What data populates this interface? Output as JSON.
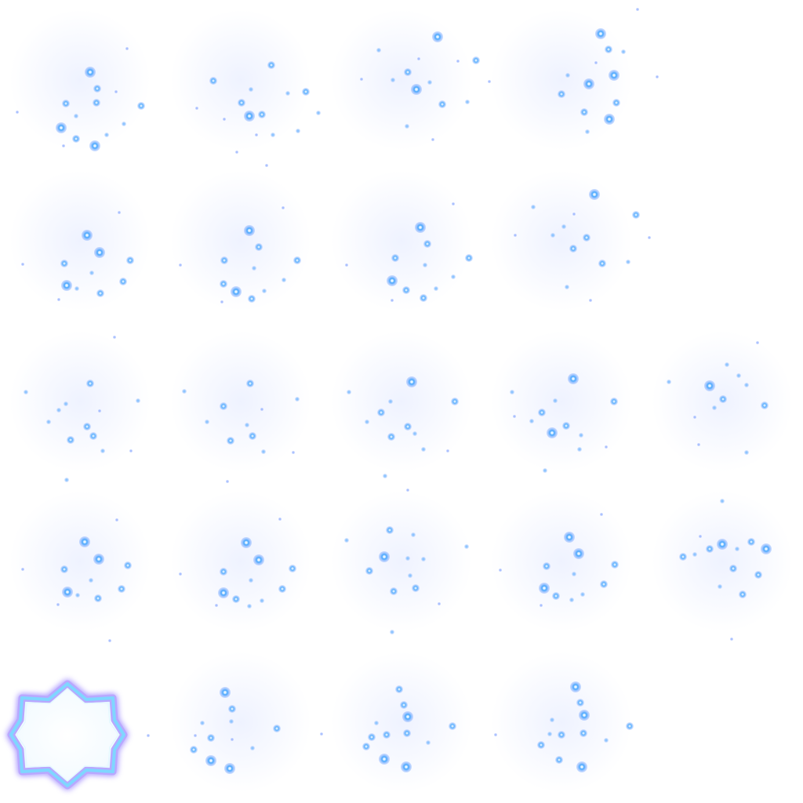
{
  "sheet": {
    "background": "#ffffff",
    "particle_color": "#4aa8ff",
    "particle_core_color": "#eaf6ff",
    "haze_color": "#e1e8ff",
    "star_stroke_color": "#7fd6ff",
    "star_glow_color": "#b8a8ff",
    "columns": 5,
    "rows": 5
  },
  "frames": [
    {
      "name": "sparkle-frame-1"
    },
    {
      "name": "sparkle-frame-2"
    },
    {
      "name": "sparkle-frame-3"
    },
    {
      "name": "sparkle-frame-4"
    },
    {
      "name": "sparkle-frame-5-empty",
      "empty": true
    },
    {
      "name": "sparkle-frame-6"
    },
    {
      "name": "sparkle-frame-7"
    },
    {
      "name": "sparkle-frame-8"
    },
    {
      "name": "sparkle-frame-9"
    },
    {
      "name": "sparkle-frame-10-empty",
      "empty": true
    },
    {
      "name": "sparkle-frame-11"
    },
    {
      "name": "sparkle-frame-12"
    },
    {
      "name": "sparkle-frame-13"
    },
    {
      "name": "sparkle-frame-14"
    },
    {
      "name": "sparkle-frame-15"
    },
    {
      "name": "sparkle-frame-16"
    },
    {
      "name": "sparkle-frame-17"
    },
    {
      "name": "sparkle-frame-18"
    },
    {
      "name": "sparkle-frame-19"
    },
    {
      "name": "sparkle-frame-20"
    },
    {
      "name": "glow-star-frame",
      "icon": "eight-point-star-icon"
    },
    {
      "name": "sparkle-frame-22"
    },
    {
      "name": "sparkle-frame-23"
    },
    {
      "name": "sparkle-frame-24"
    },
    {
      "name": "sparkle-frame-25-empty",
      "empty": true
    }
  ]
}
